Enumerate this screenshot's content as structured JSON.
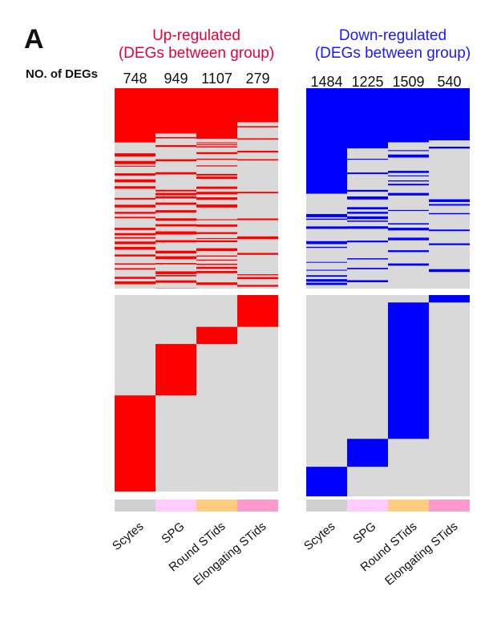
{
  "panel_label": "A",
  "left_title": [
    "Up-regulated",
    "(DEGs between group)"
  ],
  "right_title": [
    "Down-regulated",
    "(DEGs between group)"
  ],
  "count_label": "NO. of DEGs",
  "colors": {
    "up": "#ff0000",
    "down": "#0000ff",
    "background": "#d9d9d9",
    "title_up": "#e8003a",
    "title_down": "#1a1aff",
    "group_colors": [
      "#d0d0d0",
      "#ffccff",
      "#ffcc80",
      "#ff99cc"
    ]
  },
  "chart_data": [
    {
      "type": "heatmap",
      "title": "Up-regulated (DEGs between group)",
      "categories": [
        "Scytes",
        "SPG",
        "Round STids",
        "Elongating STids"
      ],
      "total_degs": [
        748,
        949,
        1107,
        279
      ],
      "specific_degs": [
        964,
        516,
        172,
        319
      ]
    },
    {
      "type": "heatmap",
      "title": "Down-regulated (DEGs between group)",
      "categories": [
        "Scytes",
        "SPG",
        "Round STids",
        "Elongating STids"
      ],
      "total_degs": [
        1484,
        1225,
        1509,
        540
      ],
      "specific_degs": [
        167,
        158,
        771,
        42
      ]
    }
  ]
}
